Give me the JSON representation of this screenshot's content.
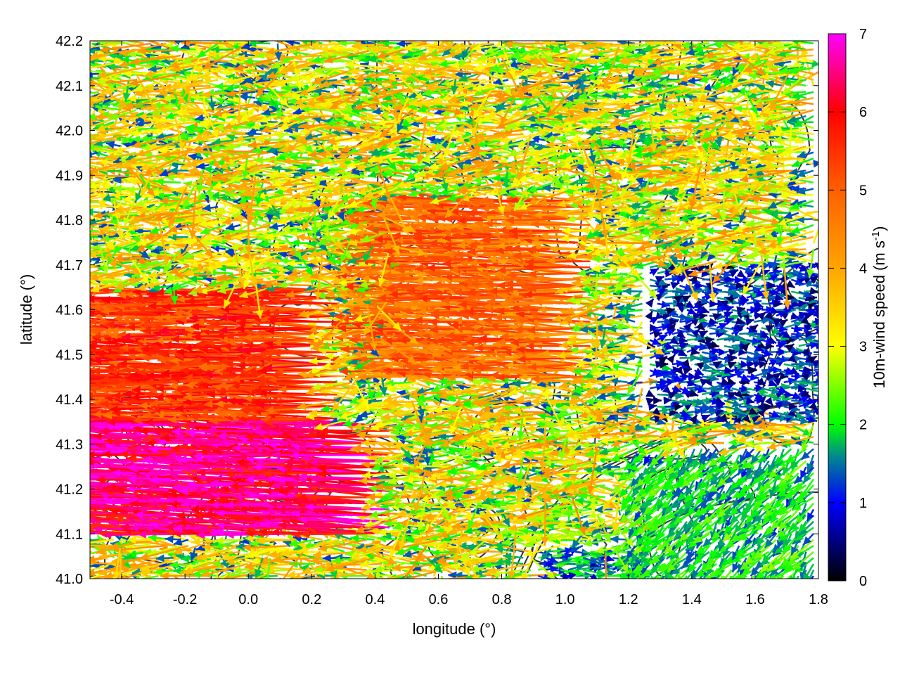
{
  "chart_data": {
    "type": "vector-field",
    "xlabel": "longitude (°)",
    "ylabel": "latitude (°)",
    "xlim": [
      -0.5,
      1.8
    ],
    "ylim": [
      41.0,
      42.2
    ],
    "x_ticks": [
      "-0.4",
      "-0.2",
      "0.0",
      "0.2",
      "0.4",
      "0.6",
      "0.8",
      "1.0",
      "1.2",
      "1.4",
      "1.6",
      "1.8"
    ],
    "x_tick_values": [
      -0.4,
      -0.2,
      0.0,
      0.2,
      0.4,
      0.6,
      0.8,
      1.0,
      1.2,
      1.4,
      1.6,
      1.8
    ],
    "y_ticks": [
      "41.0",
      "41.1",
      "41.2",
      "41.3",
      "41.4",
      "41.5",
      "41.6",
      "41.7",
      "41.8",
      "41.9",
      "42.0",
      "42.1",
      "42.2"
    ],
    "y_tick_values": [
      41.0,
      41.1,
      41.2,
      41.3,
      41.4,
      41.5,
      41.6,
      41.7,
      41.8,
      41.9,
      42.0,
      42.1,
      42.2
    ],
    "colorbar": {
      "label_main": "10m-wind speed (m s",
      "label_sup": "-1",
      "label_end": ")",
      "range": [
        0,
        7
      ],
      "ticks": [
        "0",
        "1",
        "2",
        "3",
        "4",
        "5",
        "6",
        "7"
      ],
      "tick_values": [
        0,
        1,
        2,
        3,
        4,
        5,
        6,
        7
      ],
      "stops": [
        {
          "value": 0,
          "color": "#000000"
        },
        {
          "value": 1,
          "color": "#0000ff"
        },
        {
          "value": 1.6,
          "color": "#008b8b"
        },
        {
          "value": 2,
          "color": "#00ff00"
        },
        {
          "value": 3,
          "color": "#ffff00"
        },
        {
          "value": 4,
          "color": "#ffa500"
        },
        {
          "value": 5,
          "color": "#ff6000"
        },
        {
          "value": 6,
          "color": "#ff0000"
        },
        {
          "value": 7,
          "color": "#ff00ff"
        }
      ]
    },
    "grid": true,
    "grid_style": "dotted",
    "contour_color": "#333333",
    "regions": [
      {
        "lon": [
          -0.5,
          0.45
        ],
        "lat": [
          41.1,
          41.35
        ],
        "u": -6.3,
        "v": 0.3
      },
      {
        "lon": [
          -0.5,
          0.3
        ],
        "lat": [
          41.35,
          41.65
        ],
        "u": -5.4,
        "v": 0.1
      },
      {
        "lon": [
          0.45,
          1.1
        ],
        "lat": [
          41.45,
          41.85
        ],
        "u": -4.8,
        "v": 0.15
      },
      {
        "lon": [
          1.2,
          1.8
        ],
        "lat": [
          41.0,
          41.3
        ],
        "u": -1.2,
        "v": -1.3
      },
      {
        "lon": [
          1.25,
          1.8
        ],
        "lat": [
          41.35,
          41.7
        ],
        "u": 1.0,
        "v": 0.0
      },
      {
        "lon": [
          0.9,
          1.8
        ],
        "lat": [
          41.0,
          41.06
        ],
        "u": 1.5,
        "v": 0.0
      }
    ]
  }
}
